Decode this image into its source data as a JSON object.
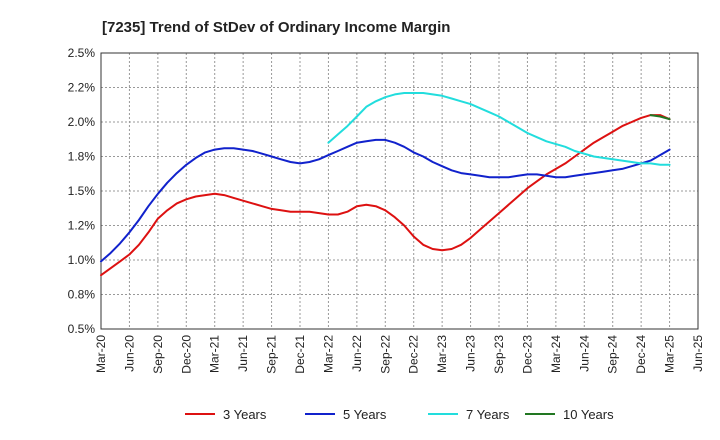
{
  "chart_data": {
    "type": "line",
    "title": "[7235]  Trend of StDev of Ordinary Income Margin",
    "xlabel": "",
    "ylabel": "",
    "x_ticks": [
      "Mar-20",
      "Jun-20",
      "Sep-20",
      "Dec-20",
      "Mar-21",
      "Jun-21",
      "Sep-21",
      "Dec-21",
      "Mar-22",
      "Jun-22",
      "Sep-22",
      "Dec-22",
      "Mar-23",
      "Jun-23",
      "Sep-23",
      "Dec-23",
      "Mar-24",
      "Jun-24",
      "Sep-24",
      "Dec-24",
      "Mar-25",
      "Jun-25"
    ],
    "y_ticks": [
      "0.5%",
      "0.8%",
      "1.0%",
      "1.2%",
      "1.5%",
      "1.8%",
      "2.0%",
      "2.2%",
      "2.5%"
    ],
    "ylim": [
      0.5,
      2.5
    ],
    "grid": true,
    "legend_position": "bottom",
    "series": [
      {
        "name": "3 Years",
        "color": "#dd1111",
        "x": [
          "Mar-20",
          "Apr-20",
          "May-20",
          "Jun-20",
          "Jul-20",
          "Aug-20",
          "Sep-20",
          "Oct-20",
          "Nov-20",
          "Dec-20",
          "Jan-21",
          "Feb-21",
          "Mar-21",
          "Apr-21",
          "May-21",
          "Jun-21",
          "Jul-21",
          "Aug-21",
          "Sep-21",
          "Oct-21",
          "Nov-21",
          "Dec-21",
          "Jan-22",
          "Feb-22",
          "Mar-22",
          "Apr-22",
          "May-22",
          "Jun-22",
          "Jul-22",
          "Aug-22",
          "Sep-22",
          "Oct-22",
          "Nov-22",
          "Dec-22",
          "Jan-23",
          "Feb-23",
          "Mar-23",
          "Apr-23",
          "May-23",
          "Jun-23",
          "Jul-23",
          "Aug-23",
          "Sep-23",
          "Oct-23",
          "Nov-23",
          "Dec-23",
          "Jan-24",
          "Feb-24",
          "Mar-24",
          "Apr-24",
          "May-24",
          "Jun-24",
          "Jul-24",
          "Aug-24",
          "Sep-24",
          "Oct-24",
          "Nov-24",
          "Dec-24",
          "Jan-25",
          "Feb-25",
          "Mar-25"
        ],
        "values": [
          0.89,
          0.94,
          0.99,
          1.04,
          1.11,
          1.2,
          1.3,
          1.36,
          1.41,
          1.44,
          1.46,
          1.47,
          1.48,
          1.47,
          1.45,
          1.43,
          1.41,
          1.39,
          1.37,
          1.36,
          1.35,
          1.35,
          1.35,
          1.34,
          1.33,
          1.33,
          1.35,
          1.39,
          1.4,
          1.39,
          1.36,
          1.31,
          1.25,
          1.17,
          1.11,
          1.08,
          1.07,
          1.08,
          1.11,
          1.16,
          1.22,
          1.28,
          1.34,
          1.4,
          1.46,
          1.52,
          1.57,
          1.62,
          1.66,
          1.7,
          1.75,
          1.8,
          1.85,
          1.89,
          1.93,
          1.97,
          2.0,
          2.03,
          2.05,
          2.05,
          2.02
        ]
      },
      {
        "name": "5 Years",
        "color": "#1122cc",
        "x": [
          "Mar-20",
          "Apr-20",
          "May-20",
          "Jun-20",
          "Jul-20",
          "Aug-20",
          "Sep-20",
          "Oct-20",
          "Nov-20",
          "Dec-20",
          "Jan-21",
          "Feb-21",
          "Mar-21",
          "Apr-21",
          "May-21",
          "Jun-21",
          "Jul-21",
          "Aug-21",
          "Sep-21",
          "Oct-21",
          "Nov-21",
          "Dec-21",
          "Jan-22",
          "Feb-22",
          "Mar-22",
          "Apr-22",
          "May-22",
          "Jun-22",
          "Jul-22",
          "Aug-22",
          "Sep-22",
          "Oct-22",
          "Nov-22",
          "Dec-22",
          "Jan-23",
          "Feb-23",
          "Mar-23",
          "Apr-23",
          "May-23",
          "Jun-23",
          "Jul-23",
          "Aug-23",
          "Sep-23",
          "Oct-23",
          "Nov-23",
          "Dec-23",
          "Jan-24",
          "Feb-24",
          "Mar-24",
          "Apr-24",
          "May-24",
          "Jun-24",
          "Jul-24",
          "Aug-24",
          "Sep-24",
          "Oct-24",
          "Nov-24",
          "Dec-24",
          "Jan-25",
          "Feb-25",
          "Mar-25"
        ],
        "values": [
          0.99,
          1.05,
          1.12,
          1.2,
          1.29,
          1.39,
          1.48,
          1.56,
          1.63,
          1.69,
          1.74,
          1.78,
          1.8,
          1.81,
          1.81,
          1.8,
          1.79,
          1.77,
          1.75,
          1.73,
          1.71,
          1.7,
          1.71,
          1.73,
          1.76,
          1.79,
          1.82,
          1.85,
          1.86,
          1.87,
          1.87,
          1.85,
          1.82,
          1.78,
          1.75,
          1.71,
          1.68,
          1.65,
          1.63,
          1.62,
          1.61,
          1.6,
          1.6,
          1.6,
          1.61,
          1.62,
          1.62,
          1.61,
          1.6,
          1.6,
          1.61,
          1.62,
          1.63,
          1.64,
          1.65,
          1.66,
          1.68,
          1.7,
          1.72,
          1.76,
          1.8
        ]
      },
      {
        "name": "7 Years",
        "color": "#22dddd",
        "x": [
          "Mar-22",
          "Apr-22",
          "May-22",
          "Jun-22",
          "Jul-22",
          "Aug-22",
          "Sep-22",
          "Oct-22",
          "Nov-22",
          "Dec-22",
          "Jan-23",
          "Feb-23",
          "Mar-23",
          "Apr-23",
          "May-23",
          "Jun-23",
          "Jul-23",
          "Aug-23",
          "Sep-23",
          "Oct-23",
          "Nov-23",
          "Dec-23",
          "Jan-24",
          "Feb-24",
          "Mar-24",
          "Apr-24",
          "May-24",
          "Jun-24",
          "Jul-24",
          "Aug-24",
          "Sep-24",
          "Oct-24",
          "Nov-24",
          "Dec-24",
          "Jan-25",
          "Feb-25",
          "Mar-25"
        ],
        "values": [
          1.85,
          1.91,
          1.97,
          2.04,
          2.11,
          2.15,
          2.18,
          2.2,
          2.21,
          2.21,
          2.21,
          2.2,
          2.19,
          2.17,
          2.15,
          2.13,
          2.1,
          2.07,
          2.04,
          2.0,
          1.96,
          1.92,
          1.89,
          1.86,
          1.84,
          1.82,
          1.79,
          1.77,
          1.75,
          1.74,
          1.73,
          1.72,
          1.71,
          1.7,
          1.7,
          1.69,
          1.69
        ]
      },
      {
        "name": "10 Years",
        "color": "#227722",
        "x": [
          "Jan-25",
          "Feb-25",
          "Mar-25"
        ],
        "values": [
          2.05,
          2.04,
          2.02
        ]
      }
    ]
  }
}
